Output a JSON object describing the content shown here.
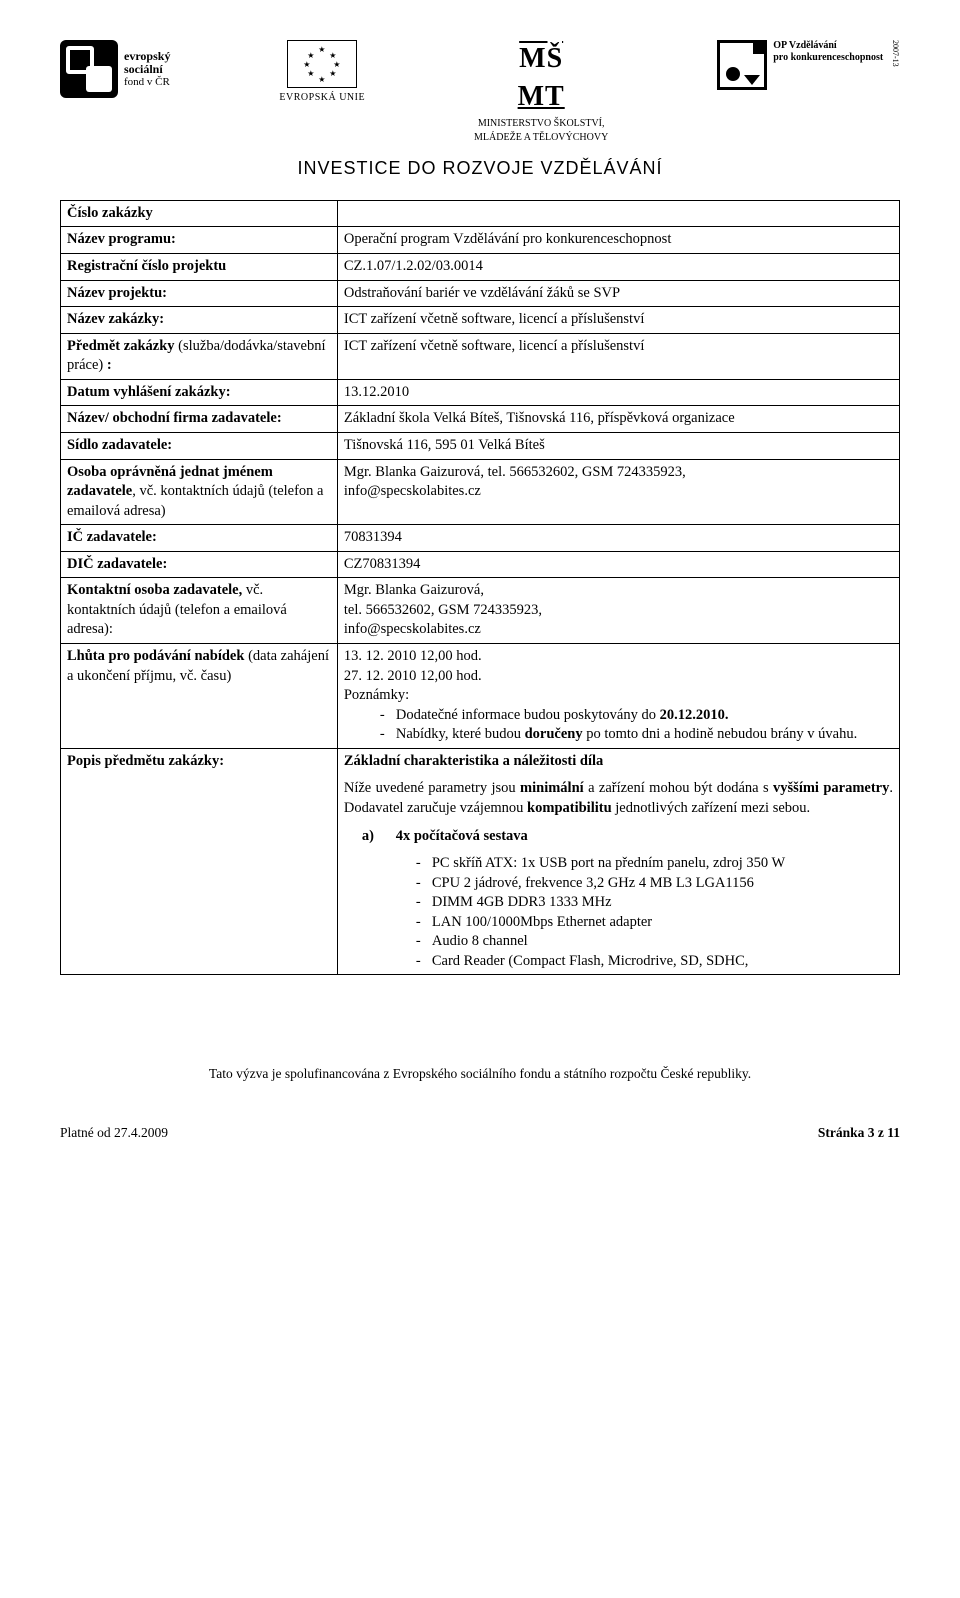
{
  "header": {
    "esf_line1": "evropský",
    "esf_line2": "sociální",
    "esf_line3": "fond v ČR",
    "eu_label": "EVROPSKÁ UNIE",
    "msmt_logo": "MŠ",
    "msmt_logo2": "MT",
    "msmt_line1": "MINISTERSTVO ŠKOLSTVÍ,",
    "msmt_line2": "MLÁDEŽE A TĚLOVÝCHOVY",
    "op_line1": "OP Vzdělávání",
    "op_line2": "pro konkurenceschopnost",
    "op_years": "2007-13",
    "invest": "INVESTICE DO ROZVOJE VZDĚLÁVÁNÍ"
  },
  "rows": {
    "cislo_zakazky": {
      "label": "Číslo zakázky",
      "value": ""
    },
    "nazev_programu": {
      "label": "Název programu:",
      "value": "Operační program Vzdělávání pro konkurenceschopnost"
    },
    "reg_cislo": {
      "label": "Registrační číslo projektu",
      "value": "CZ.1.07/1.2.02/03.0014"
    },
    "nazev_projektu": {
      "label": "Název projektu:",
      "value": "Odstraňování bariér ve vzdělávání žáků se SVP"
    },
    "nazev_zakazky": {
      "label": "Název zakázky:",
      "value": "ICT zařízení včetně software, licencí a příslušenství"
    },
    "predmet": {
      "label_pre": "Předmět zakázky",
      "label_light": "(služba/dodávka/stavební práce) ",
      "label_post": ":",
      "value": "ICT zařízení včetně software, licencí a příslušenství"
    },
    "datum_vyhl": {
      "label": "Datum vyhlášení zakázky:",
      "value": "13.12.2010"
    },
    "nazev_firma": {
      "label": "Název/ obchodní firma zadavatele:",
      "value": "Základní škola Velká Bíteš, Tišnovská 116, příspěvková organizace"
    },
    "sidlo": {
      "label": "Sídlo zadavatele:",
      "value": " Tišnovská 116, 595 01 Velká Bíteš"
    },
    "osoba": {
      "label_bold": "Osoba oprávněná jednat jménem zadavatele",
      "label_light": ", vč. kontaktních údajů (telefon a emailová adresa)",
      "value_line1": "Mgr. Blanka Gaizurová, tel. 566532602, GSM 724335923,",
      "value_line2": "info@specskolabites.cz"
    },
    "ic": {
      "label": "IČ zadavatele:",
      "value": "70831394"
    },
    "dic": {
      "label": "DIČ zadavatele:",
      "value": "CZ70831394"
    },
    "kontakt": {
      "label_bold": "Kontaktní osoba zadavatele,",
      "label_light": "vč. kontaktních údajů (telefon a emailová adresa):",
      "value_line1": "Mgr. Blanka Gaizurová,",
      "value_line2": "tel. 566532602, GSM 724335923,",
      "value_line3": "info@specskolabites.cz"
    },
    "lhuta": {
      "label_bold": "Lhůta pro podávání nabídek ",
      "label_light": "(data zahájení a ukončení příjmu, vč. času)",
      "line1": "13. 12. 2010  12,00 hod.",
      "line2": "27. 12. 2010  12,00 hod.",
      "line3": "Poznámky:",
      "bullet1_pre": "Dodatečné informace budou poskytovány do ",
      "bullet1_bold": "20.12.2010.",
      "bullet2_pre": "Nabídky, které budou ",
      "bullet2_bold": "doručeny",
      "bullet2_post": " po tomto dni a hodině nebudou brány v úvahu."
    },
    "popis": {
      "label": "Popis předmětu zakázky:",
      "heading": "Základní charakteristika a náležitosti díla",
      "para_pre": "Níže uvedené parametry jsou ",
      "para_b1": "minimální",
      "para_mid1": " a zařízení mohou být dodána s ",
      "para_b2": "vyššími parametry",
      "para_mid2": ". Dodavatel zaručuje vzájemnou ",
      "para_b3": "kompatibilitu",
      "para_post": " jednotlivých zařízení mezi sebou.",
      "section_a_label": "a)",
      "section_a_title": "4x počítačová sestava",
      "specs": [
        "PC skříň ATX: 1x USB port na předním panelu, zdroj 350 W",
        "CPU 2 jádrové, frekvence 3,2 GHz 4 MB L3 LGA1156",
        "DIMM 4GB DDR3 1333 MHz",
        "LAN 100/1000Mbps Ethernet adapter",
        "Audio 8 channel",
        "Card Reader (Compact Flash, Microdrive, SD, SDHC,"
      ]
    }
  },
  "footer": {
    "line": "Tato výzva je spolufinancována z Evropského sociálního fondu a státního rozpočtu České republiky.",
    "left": "Platné od 27.4.2009",
    "right": "Stránka 3 z 11"
  }
}
